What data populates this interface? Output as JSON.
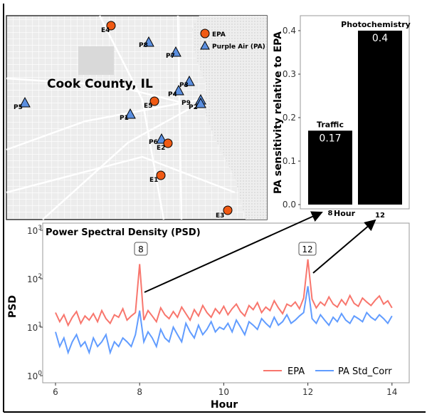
{
  "map": {
    "title": "Cook County, IL",
    "legend": {
      "epa": "EPA",
      "pa": "Purple Air (PA)"
    },
    "stations": {
      "E1": "E1",
      "E2": "E2",
      "E3": "E3",
      "E4": "E4",
      "E5": "E5",
      "P1": "P1",
      "P2": "P2",
      "P3": "P3",
      "P4": "P4",
      "P5": "P5",
      "P6": "P6",
      "P7": "P7",
      "P8": "P8",
      "P9": "P9"
    },
    "colors": {
      "epa": "#f05a14",
      "pa": "#5b8fe0"
    }
  },
  "chart_data": [
    {
      "type": "bar",
      "categories": [
        "8",
        "12"
      ],
      "values": [
        0.17,
        0.4
      ],
      "value_labels": [
        "0.17",
        "0.4"
      ],
      "annotations": [
        "Traffic",
        "Photochemistry"
      ],
      "xlabel": "Hour",
      "ylabel": "PA sensitivity relative to EPA",
      "yticks": [
        "0.0",
        "0.1",
        "0.2",
        "0.3",
        "0.4"
      ],
      "ylim": [
        0,
        0.43
      ],
      "color": "#000000"
    },
    {
      "type": "line",
      "title": "Power Spectral Density (PSD)",
      "xlabel": "Hour",
      "ylabel": "PSD",
      "yscale": "log",
      "xlim": [
        6,
        14
      ],
      "ylim": [
        1,
        1000
      ],
      "xticks": [
        "6",
        "8",
        "10",
        "12",
        "14"
      ],
      "yticks": [
        "10",
        "10",
        "10",
        "10"
      ],
      "ytick_exponents": [
        "0",
        "1",
        "2",
        "3"
      ],
      "peak_labels": [
        "8",
        "12"
      ],
      "x_start": 6,
      "x_step": 0.1,
      "series": [
        {
          "name": "EPA",
          "color": "#f8766d",
          "values": [
            20,
            13,
            18,
            11,
            16,
            21,
            12,
            17,
            14,
            19,
            13,
            22,
            15,
            12,
            18,
            16,
            24,
            14,
            17,
            20,
            200,
            14,
            22,
            17,
            13,
            25,
            18,
            15,
            21,
            16,
            26,
            19,
            14,
            23,
            17,
            28,
            20,
            16,
            24,
            19,
            27,
            18,
            24,
            30,
            21,
            17,
            28,
            23,
            32,
            20,
            26,
            22,
            35,
            25,
            19,
            30,
            27,
            33,
            24,
            40,
            250,
            38,
            25,
            33,
            28,
            42,
            30,
            26,
            37,
            29,
            45,
            31,
            27,
            40,
            33,
            28,
            36,
            44,
            30,
            35,
            25
          ]
        },
        {
          "name": "PA Std_Corr",
          "color": "#619cff",
          "values": [
            8,
            4,
            6,
            3,
            5,
            7,
            4,
            5,
            3,
            6,
            4,
            5,
            7,
            3,
            5,
            4,
            6,
            5,
            4,
            7,
            22,
            5,
            8,
            6,
            4,
            9,
            6,
            5,
            10,
            7,
            5,
            12,
            8,
            6,
            11,
            7,
            9,
            13,
            8,
            10,
            9,
            12,
            8,
            14,
            10,
            7,
            13,
            11,
            9,
            15,
            12,
            10,
            16,
            11,
            13,
            18,
            12,
            14,
            17,
            20,
            70,
            15,
            12,
            18,
            14,
            11,
            16,
            13,
            19,
            14,
            12,
            17,
            15,
            13,
            20,
            16,
            14,
            18,
            15,
            12,
            17
          ]
        }
      ]
    }
  ]
}
